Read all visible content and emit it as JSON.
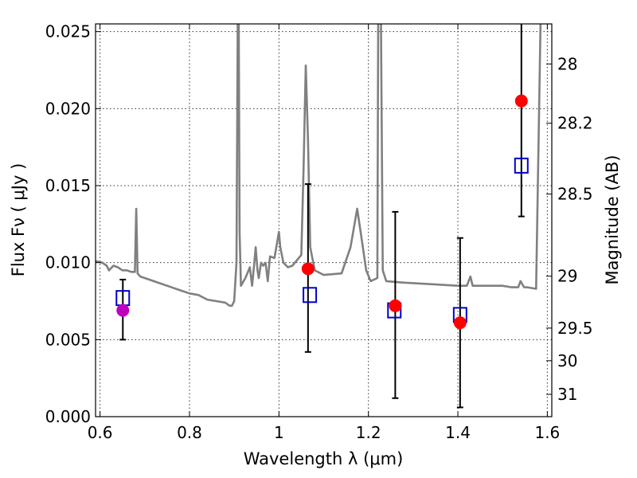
{
  "chart_data": {
    "type": "scatter",
    "title": "",
    "xlabel": "Wavelength  λ (μm)",
    "ylabel": "Flux  Fν  ( μJy )",
    "ylabel_right": "Magnitude (AB)",
    "xlim": [
      0.59,
      1.61
    ],
    "ylim": [
      0.0,
      0.0255
    ],
    "grid": true,
    "x_ticks": [
      0.6,
      0.8,
      1.0,
      1.2,
      1.4,
      1.6
    ],
    "x_tick_labels": [
      "0.6",
      "0.8",
      "1",
      "1.2",
      "1.4",
      "1.6"
    ],
    "y_ticks": [
      0.0,
      0.005,
      0.01,
      0.015,
      0.02,
      0.025
    ],
    "y_tick_labels": [
      "0.000",
      "0.005",
      "0.010",
      "0.015",
      "0.020",
      "0.025"
    ],
    "right_ticks": [
      {
        "label": "28",
        "flux": 0.0229
      },
      {
        "label": "28.2",
        "flux": 0.01905
      },
      {
        "label": "28.5",
        "flux": 0.01445
      },
      {
        "label": "29",
        "flux": 0.00912
      },
      {
        "label": "29.5",
        "flux": 0.00575
      },
      {
        "label": "30",
        "flux": 0.00363
      },
      {
        "label": "31",
        "flux": 0.00145
      }
    ],
    "colors": {
      "spectrum": "#808080",
      "observed_marker": "#ff0000",
      "detection_marker": "#bf00bf",
      "model_marker": "#0000cc",
      "errorbar": "#000000"
    },
    "series": [
      {
        "name": "model spectrum",
        "kind": "line",
        "x": [
          0.59,
          0.605,
          0.615,
          0.62,
          0.63,
          0.64,
          0.645,
          0.65,
          0.66,
          0.67,
          0.678,
          0.681,
          0.684,
          0.69,
          0.7,
          0.72,
          0.75,
          0.78,
          0.8,
          0.82,
          0.84,
          0.86,
          0.88,
          0.89,
          0.895,
          0.9,
          0.905,
          0.908,
          0.91,
          0.912,
          0.915,
          0.925,
          0.935,
          0.94,
          0.945,
          0.948,
          0.952,
          0.955,
          0.96,
          0.965,
          0.97,
          0.975,
          0.98,
          0.99,
          1.0,
          1.003,
          1.01,
          1.02,
          1.03,
          1.05,
          1.055,
          1.06,
          1.065,
          1.07,
          1.08,
          1.1,
          1.14,
          1.16,
          1.175,
          1.185,
          1.195,
          1.205,
          1.22,
          1.222,
          1.225,
          1.228,
          1.232,
          1.24,
          1.28,
          1.34,
          1.4,
          1.42,
          1.428,
          1.433,
          1.44,
          1.5,
          1.52,
          1.535,
          1.54,
          1.548,
          1.555,
          1.575,
          1.585
        ],
        "y": [
          0.0101,
          0.01,
          0.0098,
          0.0095,
          0.0098,
          0.0097,
          0.0096,
          0.0095,
          0.0095,
          0.0094,
          0.0094,
          0.0135,
          0.0093,
          0.0091,
          0.009,
          0.0088,
          0.0085,
          0.0082,
          0.008,
          0.0079,
          0.0076,
          0.0075,
          0.0074,
          0.0072,
          0.0072,
          0.0075,
          0.01,
          0.026,
          0.026,
          0.012,
          0.0085,
          0.009,
          0.0097,
          0.0085,
          0.01,
          0.011,
          0.0095,
          0.009,
          0.01,
          0.0098,
          0.01,
          0.0088,
          0.0104,
          0.0103,
          0.012,
          0.011,
          0.01,
          0.0097,
          0.0098,
          0.0105,
          0.016,
          0.0228,
          0.018,
          0.011,
          0.0095,
          0.0092,
          0.0093,
          0.011,
          0.0135,
          0.0115,
          0.0095,
          0.0088,
          0.009,
          0.026,
          0.026,
          0.026,
          0.0095,
          0.0088,
          0.0087,
          0.0086,
          0.0085,
          0.0085,
          0.0091,
          0.0085,
          0.0085,
          0.0085,
          0.0084,
          0.0084,
          0.0088,
          0.0084,
          0.0084,
          0.0083,
          0.026
        ]
      },
      {
        "name": "observed flux",
        "kind": "errorbar",
        "x": [
          0.651,
          1.065,
          1.26,
          1.405,
          1.542
        ],
        "y": [
          0.0069,
          0.0096,
          0.0072,
          0.0061,
          0.0205
        ],
        "yerr_low": [
          0.005,
          0.0042,
          0.0012,
          0.0006,
          0.013
        ],
        "yerr_high": [
          0.0089,
          0.0151,
          0.0133,
          0.0116,
          0.026
        ],
        "marker_colors": [
          "#bf00bf",
          "#ff0000",
          "#ff0000",
          "#ff0000",
          "#ff0000"
        ]
      },
      {
        "name": "model photometry",
        "kind": "open-square",
        "x": [
          0.651,
          1.069,
          1.258,
          1.405,
          1.542
        ],
        "y": [
          0.0077,
          0.0079,
          0.0069,
          0.0066,
          0.0163
        ]
      }
    ]
  }
}
